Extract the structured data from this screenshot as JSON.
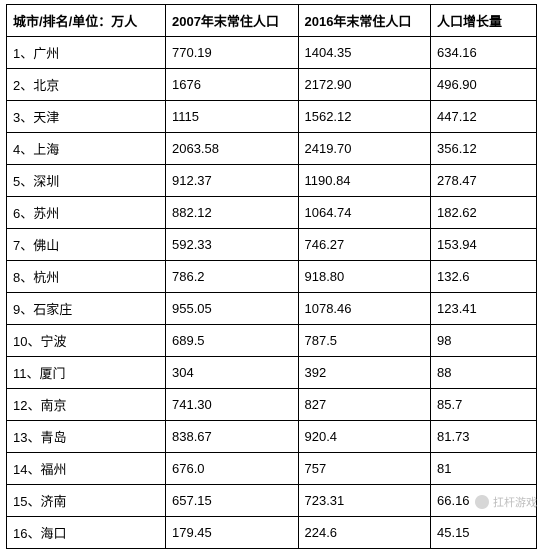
{
  "table": {
    "columns": [
      "城市/排名/单位：万人",
      "2007年末常住人口",
      "2016年末常住人口",
      "人口增长量"
    ],
    "rows": [
      [
        "1、广州",
        "770.19",
        "1404.35",
        "634.16"
      ],
      [
        "2、北京",
        "1676",
        "2172.90",
        "496.90"
      ],
      [
        "3、天津",
        "1115",
        "1562.12",
        "447.12"
      ],
      [
        "4、上海",
        "2063.58",
        "2419.70",
        "356.12"
      ],
      [
        "5、深圳",
        "912.37",
        "1190.84",
        "278.47"
      ],
      [
        "6、苏州",
        "882.12",
        "1064.74",
        "182.62"
      ],
      [
        "7、佛山",
        "592.33",
        "746.27",
        "153.94"
      ],
      [
        "8、杭州",
        "786.2",
        "918.80",
        "132.6"
      ],
      [
        "9、石家庄",
        "955.05",
        "1078.46",
        "123.41"
      ],
      [
        "10、宁波",
        "689.5",
        "787.5",
        "98"
      ],
      [
        "11、厦门",
        "304",
        "392",
        "88"
      ],
      [
        "12、南京",
        "741.30",
        "827",
        "85.7"
      ],
      [
        "13、青岛",
        "838.67",
        "920.4",
        "81.73"
      ],
      [
        "14、福州",
        "676.0",
        "757",
        "81"
      ],
      [
        "15、济南",
        "657.15",
        "723.31",
        "66.16"
      ],
      [
        "16、海口",
        "179.45",
        "224.6",
        "45.15"
      ]
    ]
  },
  "watermark": {
    "text": "扛杆游戏"
  }
}
